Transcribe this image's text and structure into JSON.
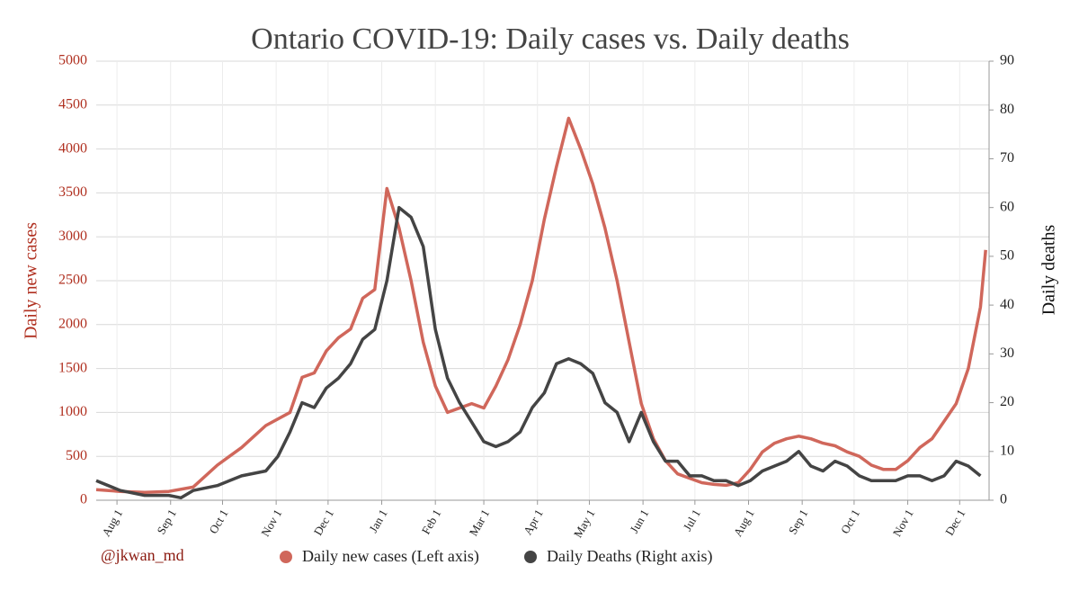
{
  "chart_data": {
    "type": "line",
    "title": "Ontario COVID-19: Daily cases vs. Daily deaths",
    "y_label": "Daily new cases",
    "y2_label": "Daily deaths",
    "annotation": "@jkwan_md",
    "xlim": [
      0,
      516
    ],
    "xticks": [
      {
        "value": 12,
        "label": "Aug 1"
      },
      {
        "value": 43,
        "label": "Sep 1"
      },
      {
        "value": 73,
        "label": "Oct 1"
      },
      {
        "value": 104,
        "label": "Nov 1"
      },
      {
        "value": 134,
        "label": "Dec 1"
      },
      {
        "value": 165,
        "label": "Jan 1"
      },
      {
        "value": 196,
        "label": "Feb 1"
      },
      {
        "value": 224,
        "label": "Mar 1"
      },
      {
        "value": 255,
        "label": "Apr 1"
      },
      {
        "value": 285,
        "label": "May 1"
      },
      {
        "value": 316,
        "label": "Jun 1"
      },
      {
        "value": 346,
        "label": "Jul 1"
      },
      {
        "value": 377,
        "label": "Aug 1"
      },
      {
        "value": 408,
        "label": "Sep 1"
      },
      {
        "value": 438,
        "label": "Oct 1"
      },
      {
        "value": 469,
        "label": "Nov 1"
      },
      {
        "value": 499,
        "label": "Dec 1"
      }
    ],
    "ylim": [
      0,
      5000
    ],
    "yticks": [
      0,
      500,
      1000,
      1500,
      2000,
      2500,
      3000,
      3500,
      4000,
      4500,
      5000
    ],
    "y2lim": [
      0,
      90
    ],
    "y2ticks": [
      0,
      10,
      20,
      30,
      40,
      50,
      60,
      70,
      80,
      90
    ],
    "grid": true,
    "legend": "bottom",
    "series": [
      {
        "name": "Daily new cases (Left axis)",
        "color": "#d0675b",
        "axis": "y",
        "x": [
          0,
          14,
          28,
          42,
          56,
          70,
          84,
          98,
          112,
          119,
          126,
          133,
          140,
          147,
          154,
          161,
          168,
          175,
          182,
          189,
          196,
          203,
          210,
          217,
          224,
          231,
          238,
          245,
          252,
          259,
          266,
          273,
          280,
          287,
          294,
          301,
          308,
          315,
          322,
          329,
          336,
          343,
          350,
          357,
          364,
          371,
          378,
          385,
          392,
          399,
          406,
          413,
          420,
          427,
          434,
          441,
          448,
          455,
          462,
          469,
          476,
          483,
          490,
          497,
          504,
          511,
          514
        ],
        "values": [
          120,
          100,
          90,
          100,
          150,
          400,
          600,
          850,
          1000,
          1400,
          1450,
          1700,
          1850,
          1950,
          2300,
          2400,
          3550,
          3100,
          2500,
          1800,
          1300,
          1000,
          1050,
          1100,
          1050,
          1300,
          1600,
          2000,
          2500,
          3200,
          3800,
          4350,
          4000,
          3600,
          3100,
          2500,
          1800,
          1100,
          700,
          450,
          300,
          250,
          200,
          180,
          170,
          200,
          350,
          550,
          650,
          700,
          730,
          700,
          650,
          620,
          550,
          500,
          400,
          350,
          350,
          450,
          600,
          700,
          900,
          1100,
          1500,
          2200,
          2850
        ]
      },
      {
        "name": "Daily Deaths (Right axis)",
        "color": "#444444",
        "axis": "y2",
        "x": [
          0,
          14,
          28,
          42,
          49,
          56,
          70,
          84,
          98,
          105,
          112,
          119,
          126,
          133,
          140,
          147,
          154,
          161,
          168,
          175,
          182,
          189,
          196,
          203,
          210,
          217,
          224,
          231,
          238,
          245,
          252,
          259,
          266,
          273,
          280,
          287,
          294,
          301,
          308,
          315,
          322,
          329,
          336,
          343,
          350,
          357,
          364,
          371,
          378,
          385,
          392,
          399,
          406,
          413,
          420,
          427,
          434,
          441,
          448,
          455,
          462,
          469,
          476,
          483,
          490,
          497,
          504,
          511
        ],
        "values": [
          4,
          2,
          1,
          1,
          0.5,
          2,
          3,
          5,
          6,
          9,
          14,
          20,
          19,
          23,
          25,
          28,
          33,
          35,
          45,
          60,
          58,
          52,
          35,
          25,
          20,
          16,
          12,
          11,
          12,
          14,
          19,
          22,
          28,
          29,
          28,
          26,
          20,
          18,
          12,
          18,
          12,
          8,
          8,
          5,
          5,
          4,
          4,
          3,
          4,
          6,
          7,
          8,
          10,
          7,
          6,
          8,
          7,
          5,
          4,
          4,
          4,
          5,
          5,
          4,
          5,
          8,
          7,
          5
        ]
      }
    ]
  }
}
